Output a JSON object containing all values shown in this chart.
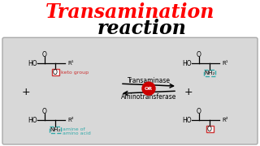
{
  "title_line1": "Transamination",
  "title_line2": "reaction",
  "title_color1": "#ff0000",
  "title_color2": "#000000",
  "bg_color": "#ffffff",
  "panel_bg": "#d8d8d8",
  "enzyme1": "Transaminase",
  "enzyme2": "Aminotransferase",
  "or_color": "#cc0000",
  "keto_label": "keto group",
  "amine_label1": "amine of",
  "amine_label2": "amino acid",
  "keto_box_color": "#cc3333",
  "amine_box_color": "#33aaaa",
  "nh2_right_color": "#33aaaa",
  "o_right_color": "#cc3333",
  "title1_fontsize": 17,
  "title2_fontsize": 17
}
